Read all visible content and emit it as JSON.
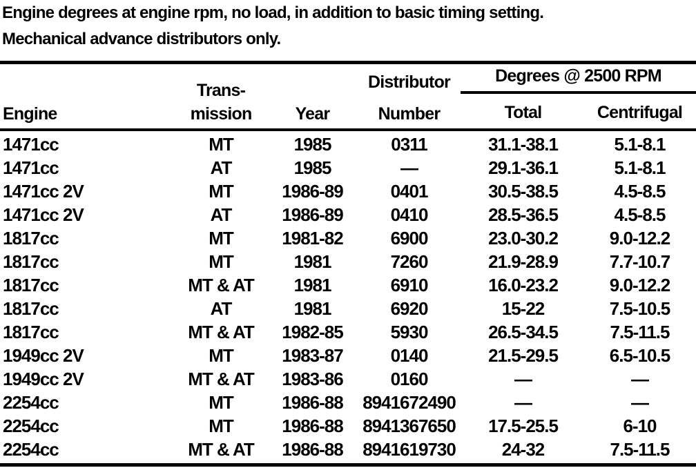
{
  "intro": {
    "line1": "Engine degrees at engine rpm, no load, in addition to basic timing setting.",
    "line2": "Mechanical advance distributors only."
  },
  "table": {
    "headers": {
      "engine": "Engine",
      "transmission_line1": "Trans-",
      "transmission_line2": "mission",
      "year": "Year",
      "distributor_line1": "Distributor",
      "distributor_line2": "Number",
      "degrees_group": "Degrees @ 2500 RPM",
      "total": "Total",
      "centrifugal": "Centrifugal"
    },
    "rows": [
      {
        "engine": "1471cc",
        "transmission": "MT",
        "year": "1985",
        "distributor": "0311",
        "total": "31.1-38.1",
        "centrifugal": "5.1-8.1"
      },
      {
        "engine": "1471cc",
        "transmission": "AT",
        "year": "1985",
        "distributor": "—",
        "total": "29.1-36.1",
        "centrifugal": "5.1-8.1"
      },
      {
        "engine": "1471cc 2V",
        "transmission": "MT",
        "year": "1986-89",
        "distributor": "0401",
        "total": "30.5-38.5",
        "centrifugal": "4.5-8.5"
      },
      {
        "engine": "1471cc 2V",
        "transmission": "AT",
        "year": "1986-89",
        "distributor": "0410",
        "total": "28.5-36.5",
        "centrifugal": "4.5-8.5"
      },
      {
        "engine": "1817cc",
        "transmission": "MT",
        "year": "1981-82",
        "distributor": "6900",
        "total": "23.0-30.2",
        "centrifugal": "9.0-12.2"
      },
      {
        "engine": "1817cc",
        "transmission": "MT",
        "year": "1981",
        "distributor": "7260",
        "total": "21.9-28.9",
        "centrifugal": "7.7-10.7"
      },
      {
        "engine": "1817cc",
        "transmission": "MT & AT",
        "year": "1981",
        "distributor": "6910",
        "total": "16.0-23.2",
        "centrifugal": "9.0-12.2"
      },
      {
        "engine": "1817cc",
        "transmission": "AT",
        "year": "1981",
        "distributor": "6920",
        "total": "15-22",
        "centrifugal": "7.5-10.5"
      },
      {
        "engine": "1817cc",
        "transmission": "MT & AT",
        "year": "1982-85",
        "distributor": "5930",
        "total": "26.5-34.5",
        "centrifugal": "7.5-11.5"
      },
      {
        "engine": "1949cc 2V",
        "transmission": "MT",
        "year": "1983-87",
        "distributor": "0140",
        "total": "21.5-29.5",
        "centrifugal": "6.5-10.5"
      },
      {
        "engine": "1949cc 2V",
        "transmission": "MT & AT",
        "year": "1983-86",
        "distributor": "0160",
        "total": "—",
        "centrifugal": "—"
      },
      {
        "engine": "2254cc",
        "transmission": "MT",
        "year": "1986-88",
        "distributor": "8941672490",
        "total": "—",
        "centrifugal": "—"
      },
      {
        "engine": "2254cc",
        "transmission": "MT",
        "year": "1986-88",
        "distributor": "8941367650",
        "total": "17.5-25.5",
        "centrifugal": "6-10"
      },
      {
        "engine": "2254cc",
        "transmission": "MT & AT",
        "year": "1986-88",
        "distributor": "8941619730",
        "total": "24-32",
        "centrifugal": "7.5-11.5"
      }
    ]
  },
  "colors": {
    "ink": "#000000",
    "paper": "#ffffff"
  }
}
